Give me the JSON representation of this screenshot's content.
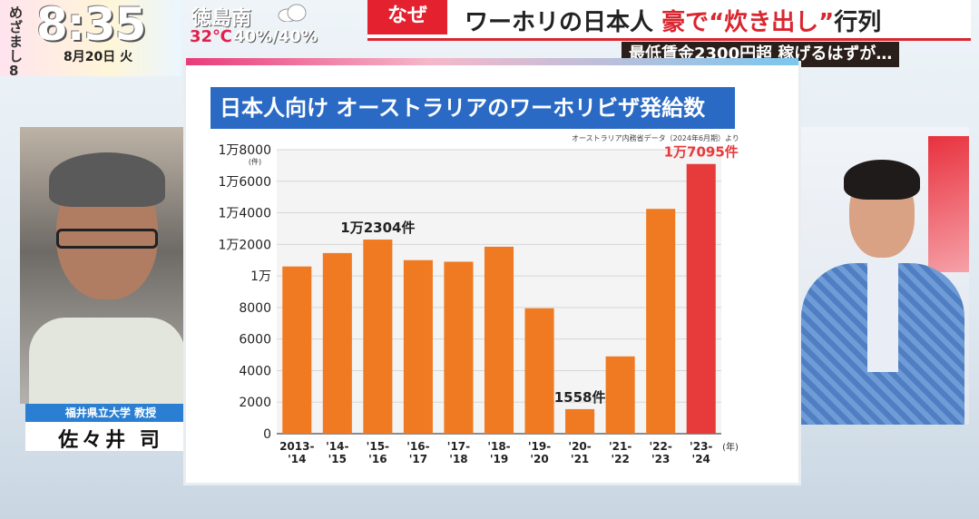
{
  "program": {
    "name": "めざまし8",
    "time": "8:35",
    "date": "8月20日 火"
  },
  "weather": {
    "place": "徳島南",
    "icon": "cloud-icon",
    "temp": "32℃",
    "precip": "40%/40%"
  },
  "headline": {
    "tag": "なぜ",
    "main_pre": "ワーホリの日本人 ",
    "main_red": "豪で“炊き出し”",
    "main_post": "行列",
    "sub": "最低賃金2300円超 稼げるはずが…"
  },
  "guest": {
    "affiliation": "福井県立大学 教授",
    "name": "佐々井 司"
  },
  "logo": "8",
  "chart_data": {
    "type": "bar",
    "title": "日本人向け オーストラリアのワーホリビザ発給数",
    "source": "オーストラリア内務省データ（2024年6月期）より",
    "ylabel_unit": "(件)",
    "xlabel_unit": "(年)",
    "categories": [
      [
        "2013-",
        "'14"
      ],
      [
        "'14-",
        "'15"
      ],
      [
        "'15-",
        "'16"
      ],
      [
        "'16-",
        "'17"
      ],
      [
        "'17-",
        "'18"
      ],
      [
        "'18-",
        "'19"
      ],
      [
        "'19-",
        "'20"
      ],
      [
        "'20-",
        "'21"
      ],
      [
        "'21-",
        "'22"
      ],
      [
        "'22-",
        "'23"
      ],
      [
        "'23-",
        "'24"
      ]
    ],
    "values": [
      10600,
      11450,
      12304,
      11000,
      10900,
      11850,
      7950,
      1558,
      4900,
      14250,
      17095
    ],
    "ylim": [
      0,
      18000
    ],
    "yticks": [
      {
        "v": 0,
        "label": "0"
      },
      {
        "v": 2000,
        "label": "2000"
      },
      {
        "v": 4000,
        "label": "4000"
      },
      {
        "v": 6000,
        "label": "6000"
      },
      {
        "v": 8000,
        "label": "8000"
      },
      {
        "v": 10000,
        "label": "1万"
      },
      {
        "v": 12000,
        "label": "1万2000"
      },
      {
        "v": 14000,
        "label": "1万4000"
      },
      {
        "v": 16000,
        "label": "1万6000"
      },
      {
        "v": 18000,
        "label": "1万8000"
      }
    ],
    "annotations": [
      {
        "index": 2,
        "label": "1万2304件"
      },
      {
        "index": 7,
        "label": "1558件"
      },
      {
        "index": 10,
        "label": "1万7095件"
      }
    ],
    "colors": {
      "bar": "#f07a22",
      "highlight": "#e73a3a",
      "label": "#222222",
      "highlight_label": "#e73a3a"
    },
    "highlight_index": 10,
    "grid": true
  }
}
